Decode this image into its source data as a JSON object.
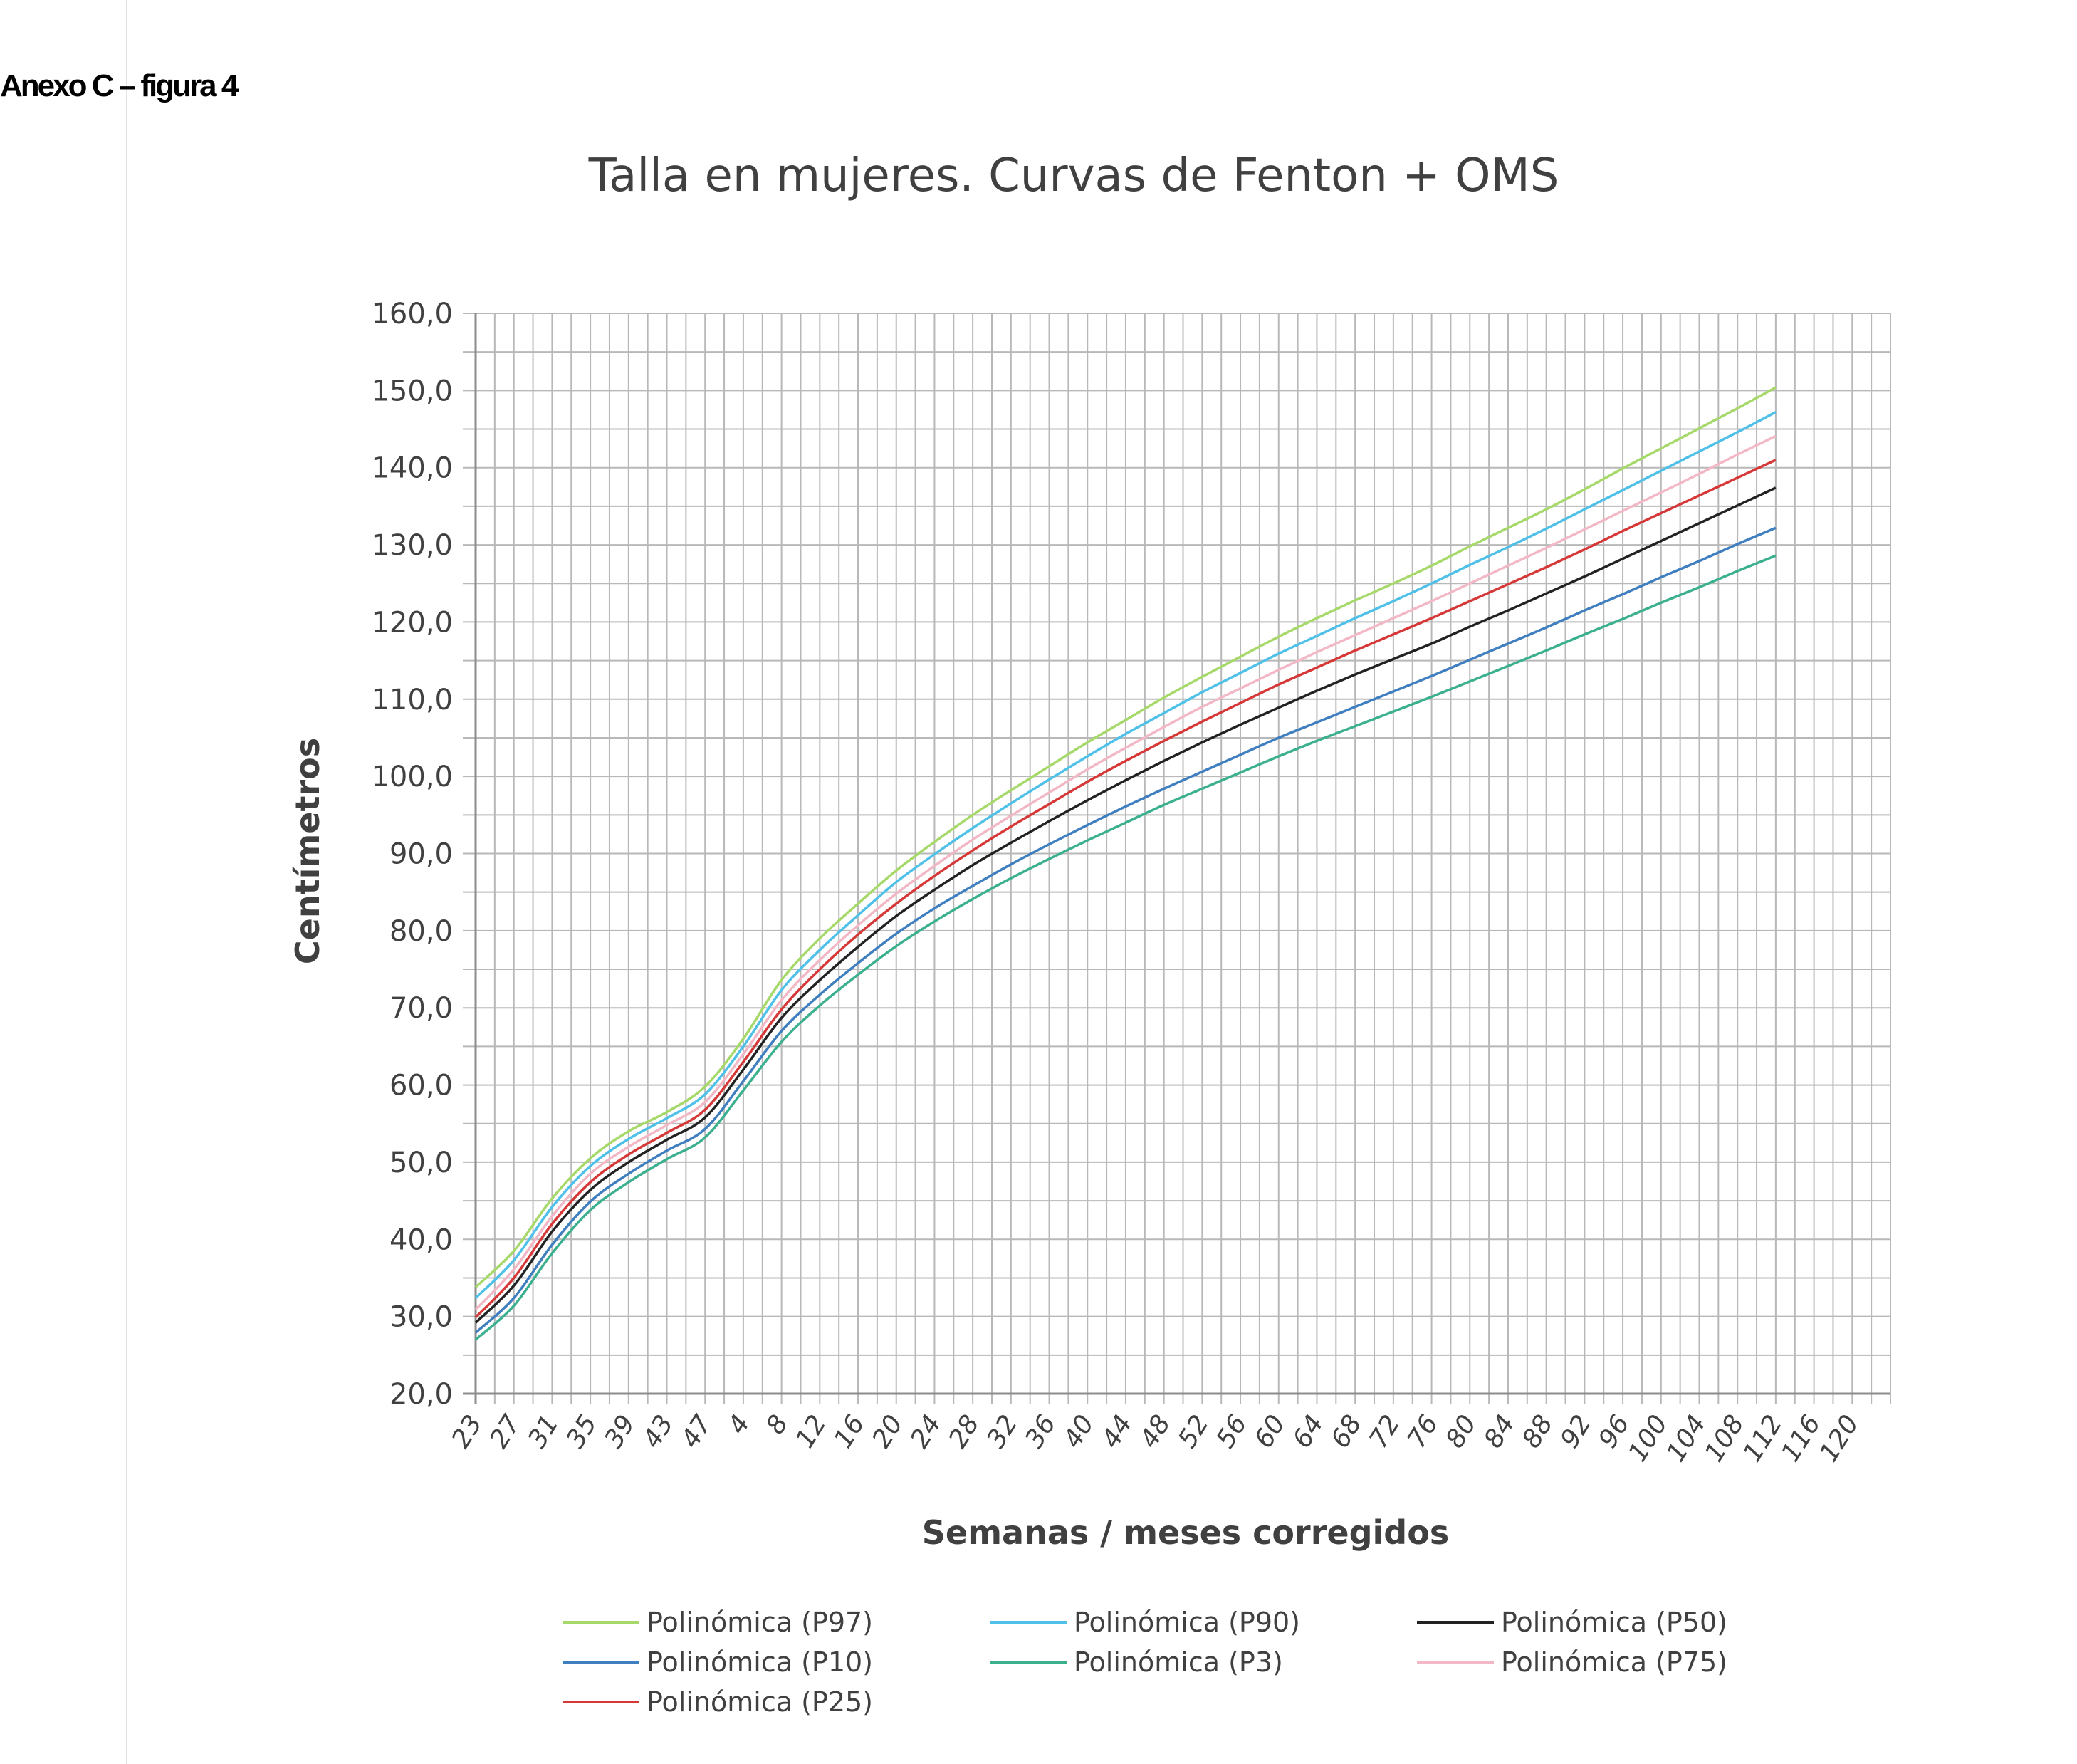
{
  "annex_label": "Anexo C – figura 4",
  "chart_data": {
    "type": "line",
    "title": "Talla en mujeres. Curvas de Fenton + OMS",
    "xlabel": "Semanas / meses corregidos",
    "ylabel": "Centímetros",
    "ylim": [
      20,
      160
    ],
    "yticks": [
      "20,0",
      "30,0",
      "40,0",
      "50,0",
      "60,0",
      "70,0",
      "80,0",
      "90,0",
      "100,0",
      "110,0",
      "120,0",
      "130,0",
      "140,0",
      "150,0",
      "160,0"
    ],
    "xticks": [
      "23",
      "27",
      "31",
      "35",
      "39",
      "43",
      "47",
      "4",
      "8",
      "12",
      "16",
      "20",
      "24",
      "28",
      "32",
      "36",
      "40",
      "44",
      "48",
      "52",
      "56",
      "60",
      "64",
      "68",
      "72",
      "76",
      "80",
      "84",
      "88",
      "92",
      "96",
      "100",
      "104",
      "108",
      "112",
      "116",
      "120"
    ],
    "grid": true,
    "legend_position": "bottom",
    "series": [
      {
        "name": "Polinómica (P97)",
        "color": "#a6d96a",
        "y": [
          33.8,
          38.5,
          45.3,
          50.5,
          54.0,
          56.5,
          59.8,
          66.0,
          73.6,
          79.0,
          83.5,
          87.8,
          91.5,
          95.0,
          98.2,
          101.3,
          104.4,
          107.3,
          110.2,
          112.9,
          115.5,
          118.1,
          120.5,
          122.8,
          125.0,
          127.3,
          129.8,
          132.2,
          134.6,
          137.2,
          139.9,
          142.5,
          145.1,
          147.7,
          150.4
        ]
      },
      {
        "name": "Polinómica (P90)",
        "color": "#4fc0e8",
        "y": [
          32.4,
          37.3,
          44.2,
          49.5,
          53.0,
          55.7,
          58.8,
          65.0,
          72.3,
          77.5,
          82.0,
          86.3,
          89.9,
          93.3,
          96.5,
          99.6,
          102.6,
          105.5,
          108.2,
          110.9,
          113.4,
          115.9,
          118.2,
          120.5,
          122.7,
          125.0,
          127.4,
          129.7,
          132.1,
          134.6,
          137.1,
          139.6,
          142.1,
          144.6,
          147.2
        ]
      },
      {
        "name": "Polinómica (P75)",
        "color": "#f2b8c6",
        "y": [
          30.9,
          36.1,
          43.0,
          48.5,
          52.0,
          54.8,
          57.8,
          64.0,
          71.0,
          76.2,
          80.7,
          84.8,
          88.4,
          91.8,
          94.9,
          97.9,
          100.9,
          103.7,
          106.4,
          109.0,
          111.4,
          113.8,
          116.1,
          118.3,
          120.5,
          122.7,
          125.0,
          127.3,
          129.6,
          132.0,
          134.4,
          136.8,
          139.2,
          141.7,
          144.1
        ]
      },
      {
        "name": "Polinómica (P25)",
        "color": "#d63838",
        "y": [
          29.9,
          35.0,
          42.0,
          47.4,
          51.0,
          53.8,
          56.8,
          63.0,
          69.8,
          75.0,
          79.5,
          83.5,
          87.1,
          90.4,
          93.5,
          96.4,
          99.3,
          102.0,
          104.6,
          107.1,
          109.5,
          111.9,
          114.1,
          116.3,
          118.4,
          120.5,
          122.7,
          124.9,
          127.1,
          129.4,
          131.8,
          134.1,
          136.4,
          138.7,
          141.0
        ]
      },
      {
        "name": "Polinómica (P50)",
        "color": "#222222",
        "y": [
          29.2,
          34.0,
          41.0,
          46.4,
          50.0,
          52.9,
          55.8,
          62.0,
          68.7,
          73.6,
          77.9,
          81.9,
          85.3,
          88.5,
          91.4,
          94.2,
          96.9,
          99.5,
          102.0,
          104.4,
          106.7,
          108.9,
          111.1,
          113.2,
          115.2,
          117.2,
          119.4,
          121.5,
          123.7,
          125.9,
          128.2,
          130.5,
          132.8,
          135.1,
          137.4
        ]
      },
      {
        "name": "Polinómica (P10)",
        "color": "#3f7fc0",
        "y": [
          27.9,
          32.4,
          39.3,
          44.9,
          48.5,
          51.5,
          54.3,
          60.5,
          67.0,
          71.7,
          75.8,
          79.6,
          82.9,
          85.8,
          88.6,
          91.2,
          93.7,
          96.1,
          98.4,
          100.6,
          102.8,
          105.0,
          107.0,
          109.0,
          111.0,
          113.0,
          115.1,
          117.2,
          119.3,
          121.5,
          123.6,
          125.8,
          127.9,
          130.1,
          132.2
        ]
      },
      {
        "name": "Polinómica (P3)",
        "color": "#3bb08f",
        "y": [
          27.0,
          31.4,
          38.2,
          43.8,
          47.4,
          50.4,
          53.2,
          59.3,
          65.6,
          70.3,
          74.3,
          78.0,
          81.2,
          84.1,
          86.8,
          89.3,
          91.7,
          94.0,
          96.3,
          98.4,
          100.5,
          102.6,
          104.6,
          106.5,
          108.4,
          110.3,
          112.3,
          114.3,
          116.3,
          118.4,
          120.4,
          122.5,
          124.5,
          126.6,
          128.6
        ]
      }
    ],
    "legend_order": [
      "Polinómica (P97)",
      "Polinómica (P90)",
      "Polinómica (P50)",
      "Polinómica (P10)",
      "Polinómica (P3)",
      "Polinómica (P75)",
      "Polinómica (P25)"
    ]
  }
}
